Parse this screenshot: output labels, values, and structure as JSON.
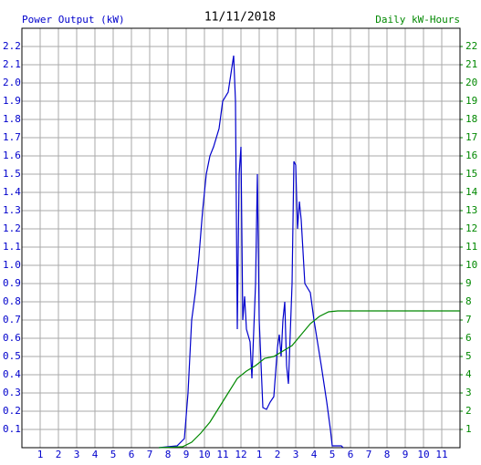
{
  "chart_data": {
    "type": "line",
    "title": "11/11/2018",
    "y_label": "Power Output (kW)",
    "y2_label": "Daily kW-Hours",
    "xlim": [
      0,
      24
    ],
    "ylim": [
      0,
      2.3
    ],
    "y2lim": [
      0,
      23
    ],
    "grid": true,
    "xticks": [
      1,
      2,
      3,
      4,
      5,
      6,
      7,
      8,
      9,
      10,
      11,
      12,
      {
        "value": 13,
        "label": "1"
      },
      {
        "value": 14,
        "label": "2"
      },
      {
        "value": 15,
        "label": "3"
      },
      {
        "value": 16,
        "label": "4"
      },
      {
        "value": 17,
        "label": "5"
      },
      {
        "value": 18,
        "label": "6"
      },
      {
        "value": 19,
        "label": "7"
      },
      {
        "value": 20,
        "label": "8"
      },
      {
        "value": 21,
        "label": "9"
      },
      {
        "value": 22,
        "label": "10"
      },
      {
        "value": 23,
        "label": "11"
      }
    ],
    "yticks": [
      0.1,
      0.2,
      0.3,
      0.4,
      0.5,
      0.6,
      0.7,
      0.8,
      0.9,
      {
        "value": 1,
        "label": "1.0"
      },
      1.1,
      1.2,
      1.3,
      1.4,
      1.5,
      1.6,
      1.7,
      1.8,
      1.9,
      {
        "value": 2,
        "label": "2.0"
      },
      2.1,
      2.2
    ],
    "y2ticks": [
      1,
      2,
      3,
      4,
      5,
      6,
      7,
      8,
      9,
      10,
      11,
      12,
      13,
      14,
      15,
      16,
      17,
      18,
      19,
      20,
      21,
      22
    ],
    "series": [
      {
        "name": "Power Output (kW)",
        "color": "#0000cc",
        "x": [
          7.5,
          8.5,
          8.9,
          9.1,
          9.3,
          9.5,
          9.7,
          9.9,
          10.1,
          10.3,
          10.5,
          10.8,
          11.0,
          11.3,
          11.6,
          11.7,
          11.8,
          11.9,
          12.0,
          12.1,
          12.2,
          12.3,
          12.5,
          12.6,
          12.8,
          12.9,
          13.0,
          13.2,
          13.4,
          13.6,
          13.8,
          14.0,
          14.1,
          14.2,
          14.3,
          14.4,
          14.5,
          14.6,
          14.8,
          14.9,
          15.0,
          15.1,
          15.2,
          15.3,
          15.5,
          15.8,
          16.0,
          16.4,
          16.7,
          16.9,
          17.0,
          17.5,
          17.6
        ],
        "values": [
          0,
          0.01,
          0.05,
          0.3,
          0.7,
          0.85,
          1.05,
          1.3,
          1.5,
          1.6,
          1.65,
          1.75,
          1.9,
          1.95,
          2.15,
          1.9,
          0.65,
          1.5,
          1.65,
          0.7,
          0.83,
          0.65,
          0.58,
          0.38,
          0.9,
          1.5,
          0.7,
          0.22,
          0.21,
          0.25,
          0.28,
          0.55,
          0.62,
          0.5,
          0.7,
          0.8,
          0.45,
          0.35,
          0.9,
          1.57,
          1.55,
          1.2,
          1.35,
          1.25,
          0.9,
          0.85,
          0.7,
          0.45,
          0.25,
          0.1,
          0.01,
          0.01,
          0
        ]
      },
      {
        "name": "Daily kW-Hours",
        "color": "#008800",
        "axis": "y2",
        "x": [
          7.5,
          8.8,
          9.3,
          9.8,
          10.3,
          10.8,
          11.3,
          11.8,
          12.3,
          12.8,
          13.3,
          13.8,
          14.3,
          14.8,
          15.3,
          15.8,
          16.3,
          16.8,
          17.3,
          24
        ],
        "values": [
          0,
          0.05,
          0.3,
          0.8,
          1.4,
          2.2,
          3.0,
          3.8,
          4.2,
          4.5,
          4.9,
          5.0,
          5.3,
          5.6,
          6.2,
          6.8,
          7.2,
          7.45,
          7.5,
          7.5
        ]
      }
    ]
  }
}
